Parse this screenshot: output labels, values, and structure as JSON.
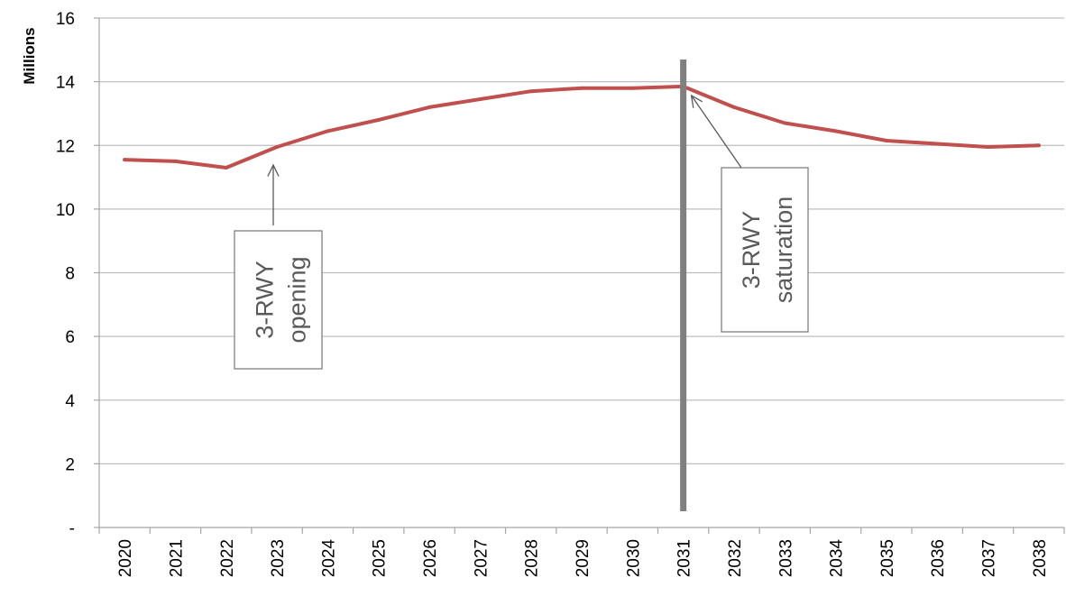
{
  "chart_data": {
    "type": "line",
    "title": "",
    "xlabel": "",
    "ylabel": "Millions",
    "ylim": [
      0,
      16
    ],
    "yticks": [
      0,
      2,
      4,
      6,
      8,
      10,
      12,
      14,
      16
    ],
    "ytick_labels": [
      "-",
      "2",
      "4",
      "6",
      "8",
      "10",
      "12",
      "14",
      "16"
    ],
    "categories": [
      "2020",
      "2021",
      "2022",
      "2023",
      "2024",
      "2025",
      "2026",
      "2027",
      "2028",
      "2029",
      "2030",
      "2031",
      "2032",
      "2033",
      "2034",
      "2035",
      "2036",
      "2037",
      "2038"
    ],
    "series": [
      {
        "values": [
          11.55,
          11.5,
          11.3,
          11.95,
          12.45,
          12.8,
          13.2,
          13.45,
          13.7,
          13.8,
          13.8,
          13.85,
          13.2,
          12.7,
          12.45,
          12.15,
          12.05,
          11.95,
          12.0
        ],
        "color": "#C0504D"
      }
    ],
    "grid": true,
    "vertical_marker": {
      "x": "2031",
      "color": "#808080"
    },
    "annotations": [
      {
        "lines": [
          "3-RWY",
          "opening"
        ],
        "points_to": "2023"
      },
      {
        "lines": [
          "3-RWY",
          "saturation"
        ],
        "points_to": "2031"
      }
    ]
  },
  "colors": {
    "series_line": "#C0504D",
    "marker_line": "#808080",
    "gridline": "#BFBFBF",
    "axis": "#A6A6A6",
    "annotation_text": "#595959",
    "annotation_border": "#808080"
  }
}
